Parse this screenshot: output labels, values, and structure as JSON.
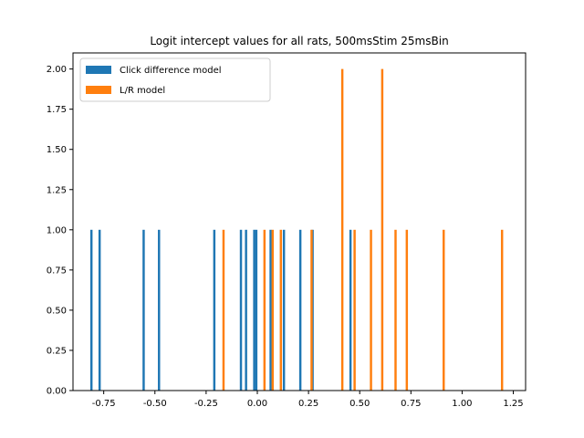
{
  "chart_data": {
    "type": "bar",
    "title": "Logit intercept values for all rats, 500msStim 25msBin",
    "xlabel": "",
    "ylabel": "",
    "xlim": [
      -0.9,
      1.31
    ],
    "ylim": [
      0,
      2.1
    ],
    "xticks": [
      "-0.75",
      "-0.50",
      "-0.25",
      "0.00",
      "0.25",
      "0.50",
      "0.75",
      "1.00",
      "1.25"
    ],
    "xtick_values": [
      -0.75,
      -0.5,
      -0.25,
      0.0,
      0.25,
      0.5,
      0.75,
      1.0,
      1.25
    ],
    "yticks": [
      "0.00",
      "0.25",
      "0.50",
      "0.75",
      "1.00",
      "1.25",
      "1.50",
      "1.75",
      "2.00"
    ],
    "ytick_values": [
      0,
      0.25,
      0.5,
      0.75,
      1.0,
      1.25,
      1.5,
      1.75,
      2.0
    ],
    "grid": false,
    "legend_position": "top-left",
    "bar_width": 0.011,
    "series": [
      {
        "name": "Click difference model",
        "color": "#1f77b4",
        "x": [
          -0.81,
          -0.77,
          -0.555,
          -0.48,
          -0.21,
          -0.08,
          -0.055,
          -0.015,
          -0.005,
          0.065,
          0.13,
          0.21,
          0.27,
          0.455
        ],
        "values": [
          1,
          1,
          1,
          1,
          1,
          1,
          1,
          1,
          1,
          1,
          1,
          1,
          1,
          1
        ]
      },
      {
        "name": "L/R model",
        "color": "#ff7f0e",
        "x": [
          -0.165,
          0.035,
          0.075,
          0.115,
          0.265,
          0.415,
          0.475,
          0.555,
          0.61,
          0.675,
          0.73,
          0.91,
          1.195
        ],
        "values": [
          1,
          1,
          1,
          1,
          1,
          2,
          1,
          1,
          2,
          1,
          1,
          1,
          1
        ]
      }
    ]
  }
}
